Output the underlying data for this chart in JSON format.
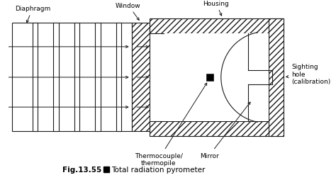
{
  "bg_color": "#ffffff",
  "line_color": "#1a1a1a",
  "fig_width": 4.74,
  "fig_height": 2.55,
  "dpi": 100,
  "caption": "Fig.13.55",
  "caption_desc": "Total radiation pyrometer",
  "labels": {
    "diaphragm": "Diaphragm",
    "window": "Window",
    "housing": "Housing",
    "thermocouple": "Thermocouple/\nthermopile",
    "mirror": "Mirror",
    "sighting": "Sighting\nhole\n(calibration)"
  }
}
